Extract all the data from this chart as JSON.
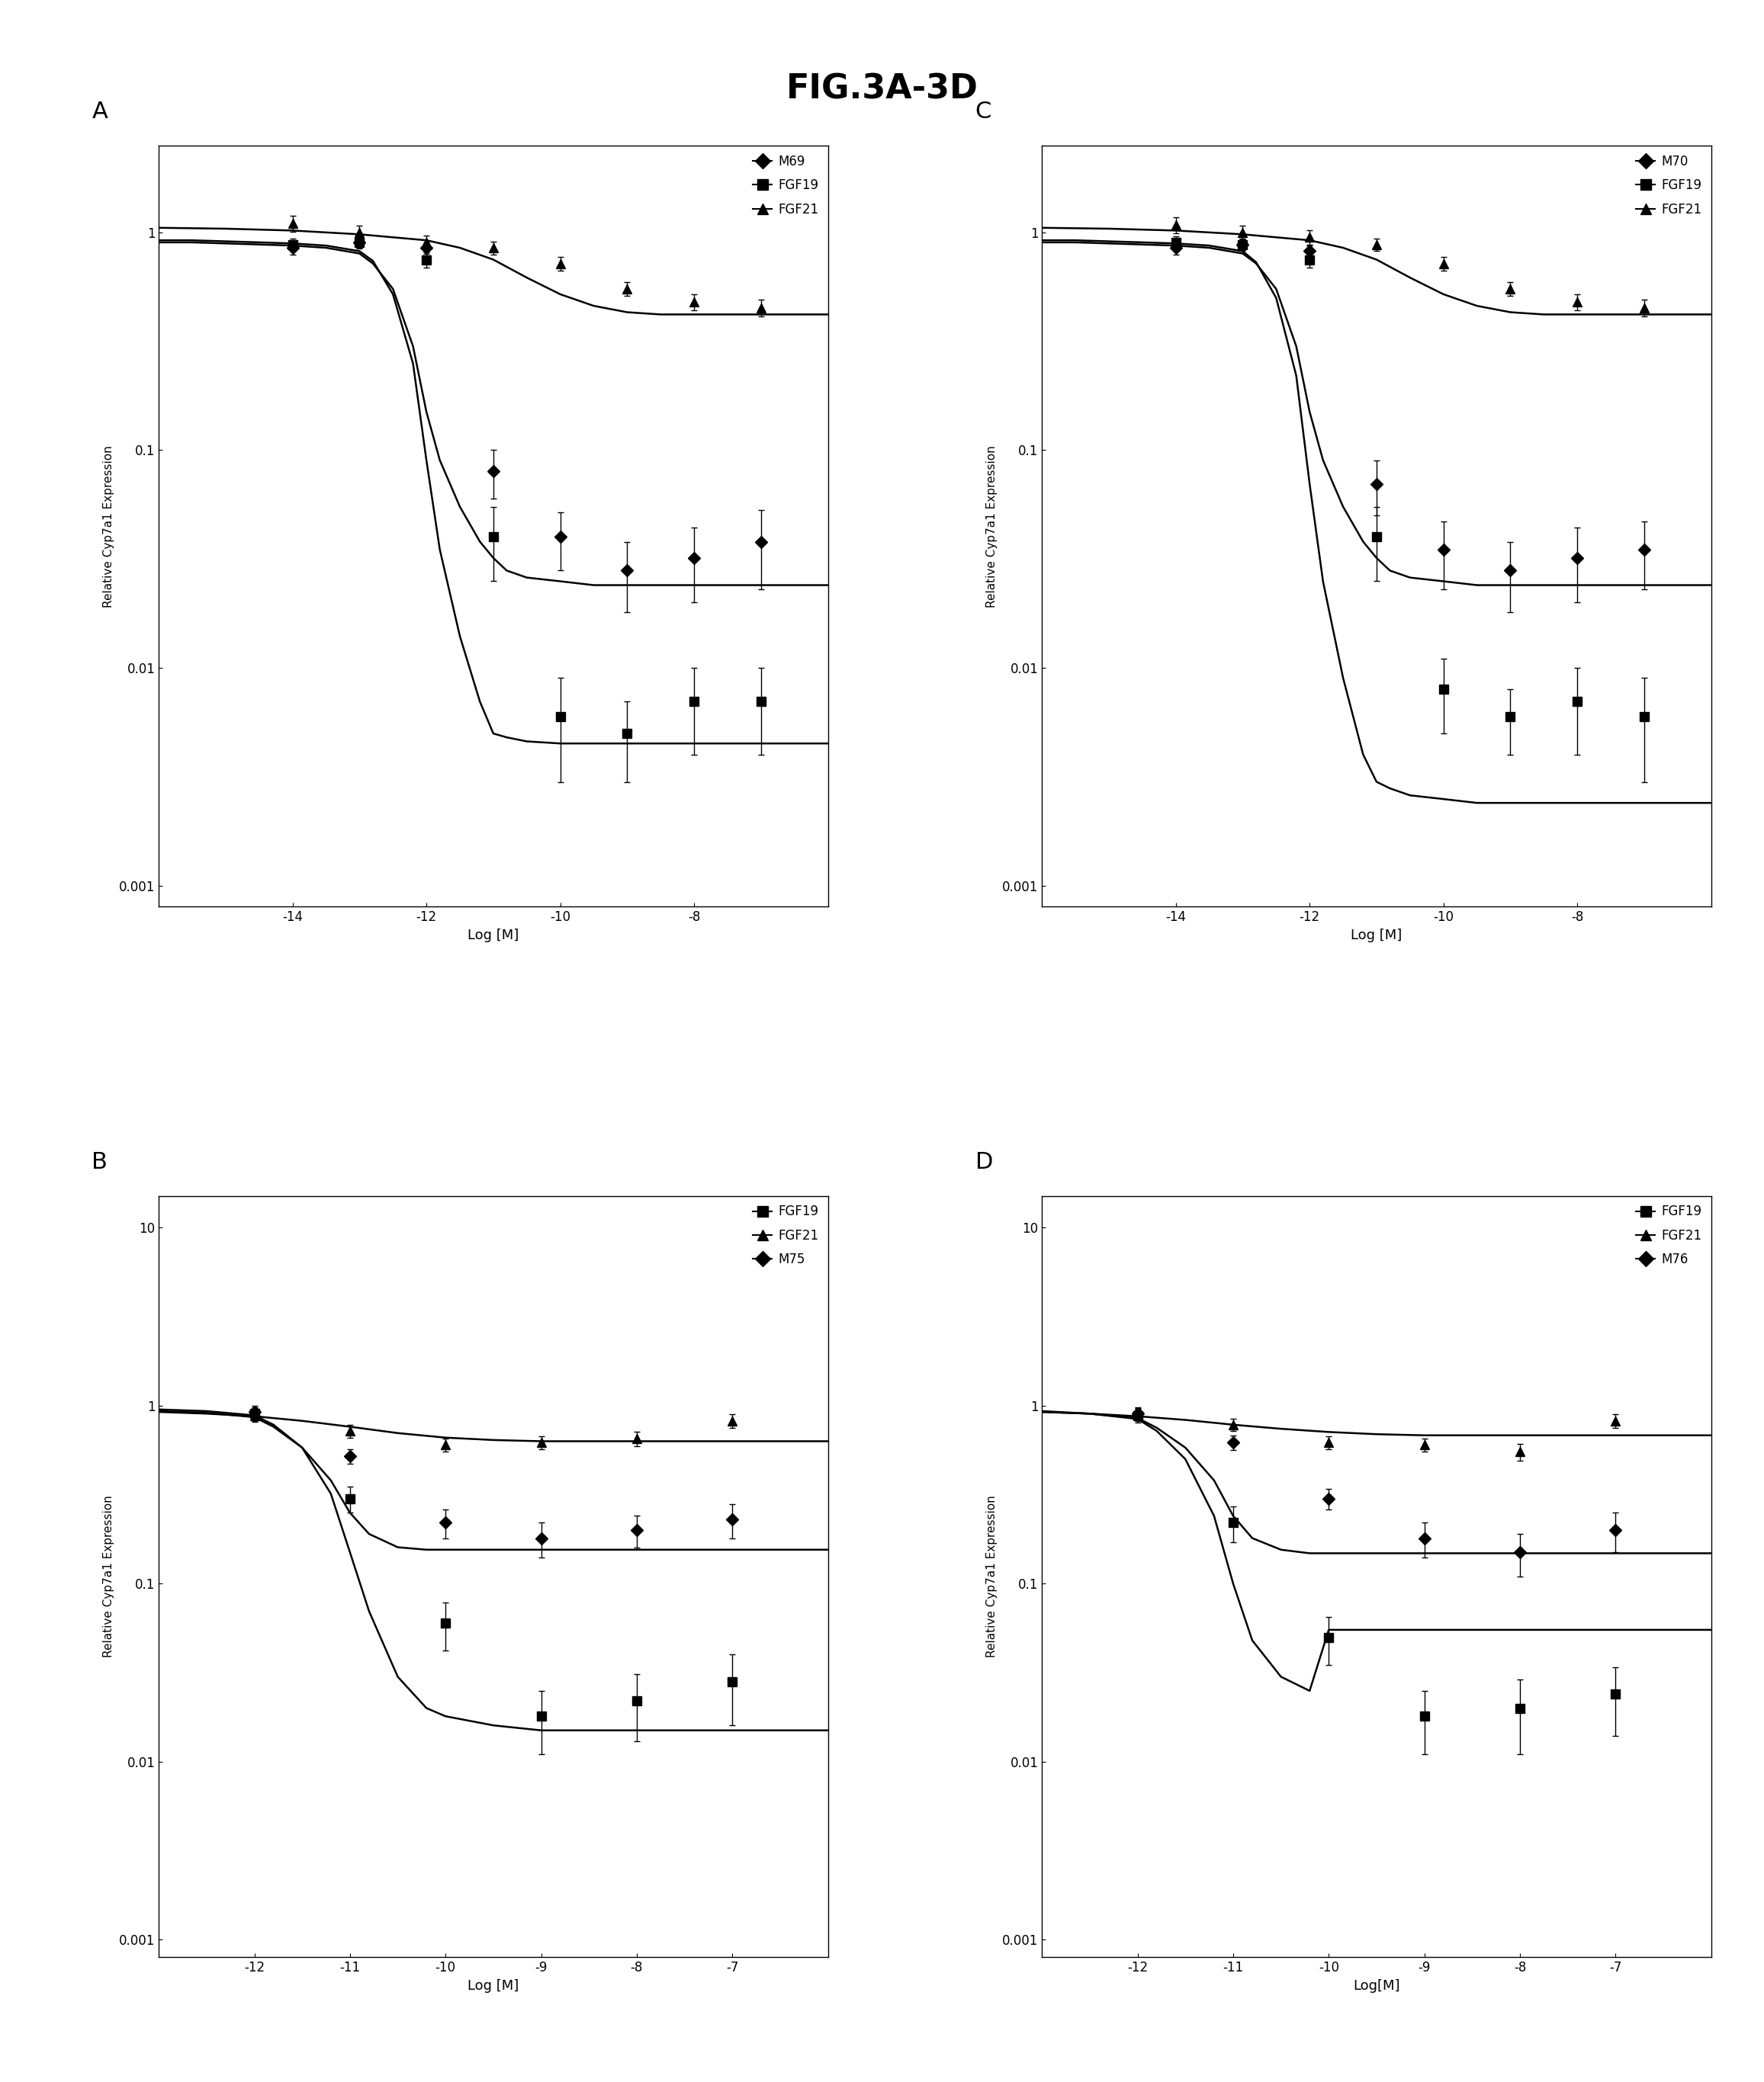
{
  "title": "FIG.3A-3D",
  "title_fontsize": 32,
  "title_fontweight": "bold",
  "background_color": "#ffffff",
  "panels": {
    "A": {
      "label": "A",
      "xlabel": "Log [M]",
      "ylabel": "Relative Cyp7a1 Expression",
      "xlim": [
        -16,
        -6
      ],
      "ylim": [
        0.0008,
        2.5
      ],
      "xticks": [
        -14,
        -12,
        -10,
        -8
      ],
      "yticks": [
        0.001,
        0.01,
        0.1,
        1
      ],
      "yticklabels": [
        "0.001",
        "0.01",
        "0.1",
        "1"
      ],
      "legend": [
        "M69",
        "FGF19",
        "FGF21"
      ],
      "series": {
        "M69": {
          "marker": "D",
          "color": "#000000",
          "x": [
            -14,
            -13,
            -12,
            -11,
            -10,
            -9,
            -8,
            -7
          ],
          "y": [
            0.85,
            0.9,
            0.85,
            0.08,
            0.04,
            0.028,
            0.032,
            0.038
          ],
          "yerr": [
            0.06,
            0.05,
            0.05,
            0.02,
            0.012,
            0.01,
            0.012,
            0.015
          ],
          "curve_x": [
            -16,
            -15.5,
            -15,
            -14.5,
            -14,
            -13.5,
            -13,
            -12.8,
            -12.5,
            -12.2,
            -12,
            -11.8,
            -11.5,
            -11.2,
            -11,
            -10.8,
            -10.5,
            -10,
            -9.5,
            -9,
            -8.5,
            -8,
            -7.5,
            -7,
            -6.5,
            -6
          ],
          "curve_y": [
            0.9,
            0.9,
            0.89,
            0.88,
            0.87,
            0.85,
            0.8,
            0.72,
            0.55,
            0.3,
            0.15,
            0.09,
            0.055,
            0.038,
            0.032,
            0.028,
            0.026,
            0.025,
            0.024,
            0.024,
            0.024,
            0.024,
            0.024,
            0.024,
            0.024,
            0.024
          ]
        },
        "FGF19": {
          "marker": "s",
          "color": "#000000",
          "x": [
            -14,
            -13,
            -12,
            -11,
            -10,
            -9,
            -8,
            -7
          ],
          "y": [
            0.88,
            0.9,
            0.75,
            0.04,
            0.006,
            0.005,
            0.007,
            0.007
          ],
          "yerr": [
            0.06,
            0.06,
            0.06,
            0.015,
            0.003,
            0.002,
            0.003,
            0.003
          ],
          "curve_x": [
            -16,
            -15.5,
            -15,
            -14.5,
            -14,
            -13.5,
            -13,
            -12.8,
            -12.5,
            -12.2,
            -12,
            -11.8,
            -11.5,
            -11.2,
            -11,
            -10.8,
            -10.5,
            -10,
            -9.5,
            -9,
            -8.5,
            -8,
            -7.5,
            -7,
            -6.5,
            -6
          ],
          "curve_y": [
            0.92,
            0.92,
            0.91,
            0.9,
            0.89,
            0.87,
            0.82,
            0.74,
            0.52,
            0.25,
            0.09,
            0.035,
            0.014,
            0.007,
            0.005,
            0.0048,
            0.0046,
            0.0045,
            0.0045,
            0.0045,
            0.0045,
            0.0045,
            0.0045,
            0.0045,
            0.0045,
            0.0045
          ]
        },
        "FGF21": {
          "marker": "^",
          "color": "#000000",
          "x": [
            -14,
            -13,
            -12,
            -11,
            -10,
            -9,
            -8,
            -7
          ],
          "y": [
            1.1,
            1.0,
            0.9,
            0.85,
            0.72,
            0.55,
            0.48,
            0.45
          ],
          "yerr": [
            0.09,
            0.07,
            0.07,
            0.06,
            0.05,
            0.04,
            0.04,
            0.04
          ],
          "curve_x": [
            -16,
            -15,
            -14,
            -13,
            -12,
            -11.5,
            -11,
            -10.5,
            -10,
            -9.5,
            -9,
            -8.5,
            -8,
            -7,
            -6
          ],
          "curve_y": [
            1.05,
            1.04,
            1.02,
            0.98,
            0.92,
            0.85,
            0.75,
            0.62,
            0.52,
            0.46,
            0.43,
            0.42,
            0.42,
            0.42,
            0.42
          ]
        }
      }
    },
    "C": {
      "label": "C",
      "xlabel": "Log [M]",
      "ylabel": "Relative Cyp7a1 Expression",
      "xlim": [
        -16,
        -6
      ],
      "ylim": [
        0.0008,
        2.5
      ],
      "xticks": [
        -14,
        -12,
        -10,
        -8
      ],
      "yticks": [
        0.001,
        0.01,
        0.1,
        1
      ],
      "yticklabels": [
        "0.001",
        "0.01",
        "0.1",
        "1"
      ],
      "legend": [
        "M70",
        "FGF19",
        "FGF21"
      ],
      "series": {
        "M70": {
          "marker": "D",
          "color": "#000000",
          "x": [
            -14,
            -13,
            -12,
            -11,
            -10,
            -9,
            -8,
            -7
          ],
          "y": [
            0.85,
            0.88,
            0.82,
            0.07,
            0.035,
            0.028,
            0.032,
            0.035
          ],
          "yerr": [
            0.06,
            0.05,
            0.05,
            0.02,
            0.012,
            0.01,
            0.012,
            0.012
          ],
          "curve_x": [
            -16,
            -15.5,
            -15,
            -14.5,
            -14,
            -13.5,
            -13,
            -12.8,
            -12.5,
            -12.2,
            -12,
            -11.8,
            -11.5,
            -11.2,
            -11,
            -10.8,
            -10.5,
            -10,
            -9.5,
            -9,
            -8.5,
            -8,
            -7.5,
            -7,
            -6.5,
            -6
          ],
          "curve_y": [
            0.9,
            0.9,
            0.89,
            0.88,
            0.87,
            0.85,
            0.8,
            0.72,
            0.55,
            0.3,
            0.15,
            0.09,
            0.055,
            0.038,
            0.032,
            0.028,
            0.026,
            0.025,
            0.024,
            0.024,
            0.024,
            0.024,
            0.024,
            0.024,
            0.024,
            0.024
          ]
        },
        "FGF19": {
          "marker": "s",
          "color": "#000000",
          "x": [
            -14,
            -13,
            -12,
            -11,
            -10,
            -9,
            -8,
            -7
          ],
          "y": [
            0.9,
            0.88,
            0.75,
            0.04,
            0.008,
            0.006,
            0.007,
            0.006
          ],
          "yerr": [
            0.06,
            0.06,
            0.06,
            0.015,
            0.003,
            0.002,
            0.003,
            0.003
          ],
          "curve_x": [
            -16,
            -15.5,
            -15,
            -14.5,
            -14,
            -13.5,
            -13,
            -12.8,
            -12.5,
            -12.2,
            -12,
            -11.8,
            -11.5,
            -11.2,
            -11,
            -10.8,
            -10.5,
            -10,
            -9.5,
            -9,
            -8.5,
            -8,
            -7.5,
            -7,
            -6.5,
            -6
          ],
          "curve_y": [
            0.92,
            0.92,
            0.91,
            0.9,
            0.89,
            0.87,
            0.82,
            0.73,
            0.5,
            0.22,
            0.07,
            0.025,
            0.009,
            0.004,
            0.003,
            0.0028,
            0.0026,
            0.0025,
            0.0024,
            0.0024,
            0.0024,
            0.0024,
            0.0024,
            0.0024,
            0.0024,
            0.0024
          ]
        },
        "FGF21": {
          "marker": "^",
          "color": "#000000",
          "x": [
            -14,
            -13,
            -12,
            -11,
            -10,
            -9,
            -8,
            -7
          ],
          "y": [
            1.08,
            1.0,
            0.95,
            0.88,
            0.72,
            0.55,
            0.48,
            0.45
          ],
          "yerr": [
            0.09,
            0.07,
            0.07,
            0.06,
            0.05,
            0.04,
            0.04,
            0.04
          ],
          "curve_x": [
            -16,
            -15,
            -14,
            -13,
            -12,
            -11.5,
            -11,
            -10.5,
            -10,
            -9.5,
            -9,
            -8.5,
            -8,
            -7,
            -6
          ],
          "curve_y": [
            1.05,
            1.04,
            1.02,
            0.98,
            0.92,
            0.85,
            0.75,
            0.62,
            0.52,
            0.46,
            0.43,
            0.42,
            0.42,
            0.42,
            0.42
          ]
        }
      }
    },
    "B": {
      "label": "B",
      "xlabel": "Log [M]",
      "ylabel": "Relative Cyp7a1 Expression",
      "xlim": [
        -13,
        -6
      ],
      "ylim": [
        0.0008,
        15
      ],
      "xticks": [
        -12,
        -11,
        -10,
        -9,
        -8,
        -7
      ],
      "yticks": [
        0.001,
        0.01,
        0.1,
        1,
        10
      ],
      "yticklabels": [
        "0.001",
        "0.01",
        "0.1",
        "1",
        "10"
      ],
      "legend": [
        "FGF19",
        "FGF21",
        "M75"
      ],
      "series": {
        "FGF19": {
          "marker": "s",
          "color": "#000000",
          "x": [
            -12,
            -11,
            -10,
            -9,
            -8,
            -7
          ],
          "y": [
            0.9,
            0.3,
            0.06,
            0.018,
            0.022,
            0.028
          ],
          "yerr": [
            0.08,
            0.05,
            0.018,
            0.007,
            0.009,
            0.012
          ],
          "curve_x": [
            -13,
            -12.5,
            -12,
            -11.8,
            -11.5,
            -11.2,
            -11,
            -10.8,
            -10.5,
            -10.2,
            -10,
            -9.5,
            -9,
            -8.5,
            -8,
            -7.5,
            -7,
            -6.5,
            -6
          ],
          "curve_y": [
            0.95,
            0.93,
            0.88,
            0.78,
            0.58,
            0.32,
            0.15,
            0.07,
            0.03,
            0.02,
            0.018,
            0.016,
            0.015,
            0.015,
            0.015,
            0.015,
            0.015,
            0.015,
            0.015
          ]
        },
        "FGF21": {
          "marker": "^",
          "color": "#000000",
          "x": [
            -12,
            -11,
            -10,
            -9,
            -8,
            -7
          ],
          "y": [
            0.88,
            0.72,
            0.6,
            0.62,
            0.65,
            0.82
          ],
          "yerr": [
            0.07,
            0.06,
            0.05,
            0.05,
            0.06,
            0.07
          ],
          "curve_x": [
            -13,
            -12.5,
            -12,
            -11.5,
            -11,
            -10.5,
            -10,
            -9.5,
            -9,
            -8.5,
            -8,
            -7.5,
            -7,
            -6.5,
            -6
          ],
          "curve_y": [
            0.92,
            0.9,
            0.87,
            0.82,
            0.76,
            0.7,
            0.66,
            0.64,
            0.63,
            0.63,
            0.63,
            0.63,
            0.63,
            0.63,
            0.63
          ]
        },
        "M75": {
          "marker": "D",
          "color": "#000000",
          "x": [
            -12,
            -11,
            -10,
            -9,
            -8,
            -7
          ],
          "y": [
            0.92,
            0.52,
            0.22,
            0.18,
            0.2,
            0.23
          ],
          "yerr": [
            0.08,
            0.05,
            0.04,
            0.04,
            0.04,
            0.05
          ],
          "curve_x": [
            -13,
            -12.5,
            -12,
            -11.8,
            -11.5,
            -11.2,
            -11,
            -10.8,
            -10.5,
            -10.2,
            -10,
            -9.5,
            -9,
            -8.5,
            -8,
            -7.5,
            -7,
            -6.5,
            -6
          ],
          "curve_y": [
            0.93,
            0.91,
            0.86,
            0.76,
            0.58,
            0.38,
            0.25,
            0.19,
            0.16,
            0.155,
            0.155,
            0.155,
            0.155,
            0.155,
            0.155,
            0.155,
            0.155,
            0.155,
            0.155
          ]
        }
      }
    },
    "D": {
      "label": "D",
      "xlabel": "Log[M]",
      "ylabel": "Relative Cyp7a1 Expression",
      "xlim": [
        -13,
        -6
      ],
      "ylim": [
        0.0008,
        15
      ],
      "xticks": [
        -12,
        -11,
        -10,
        -9,
        -8,
        -7
      ],
      "yticks": [
        0.001,
        0.01,
        0.1,
        1,
        10
      ],
      "yticklabels": [
        "0.001",
        "0.01",
        "0.1",
        "1",
        "10"
      ],
      "legend": [
        "FGF19",
        "FGF21",
        "M76"
      ],
      "series": {
        "FGF19": {
          "marker": "s",
          "color": "#000000",
          "x": [
            -12,
            -11,
            -10,
            -9,
            -8,
            -7
          ],
          "y": [
            0.88,
            0.22,
            0.05,
            0.018,
            0.02,
            0.024
          ],
          "yerr": [
            0.08,
            0.05,
            0.015,
            0.007,
            0.009,
            0.01
          ],
          "curve_x": [
            -13,
            -12.5,
            -12,
            -11.8,
            -11.5,
            -11.2,
            -11,
            -10.8,
            -10.5,
            -10.2,
            -10,
            -9.5,
            -9,
            -8.5,
            -8,
            -7.5,
            -7,
            -6.5,
            -6
          ],
          "curve_y": [
            0.93,
            0.9,
            0.84,
            0.72,
            0.5,
            0.24,
            0.1,
            0.048,
            0.03,
            0.025,
            0.055,
            0.055,
            0.055,
            0.055,
            0.055,
            0.055,
            0.055,
            0.055,
            0.055
          ]
        },
        "FGF21": {
          "marker": "^",
          "color": "#000000",
          "x": [
            -12,
            -11,
            -10,
            -9,
            -8,
            -7
          ],
          "y": [
            0.9,
            0.78,
            0.62,
            0.6,
            0.55,
            0.82
          ],
          "yerr": [
            0.07,
            0.06,
            0.05,
            0.05,
            0.06,
            0.07
          ],
          "curve_x": [
            -13,
            -12.5,
            -12,
            -11.5,
            -11,
            -10.5,
            -10,
            -9.5,
            -9,
            -8.5,
            -8,
            -7.5,
            -7,
            -6.5,
            -6
          ],
          "curve_y": [
            0.92,
            0.9,
            0.87,
            0.83,
            0.78,
            0.74,
            0.71,
            0.69,
            0.68,
            0.68,
            0.68,
            0.68,
            0.68,
            0.68,
            0.68
          ]
        },
        "M76": {
          "marker": "D",
          "color": "#000000",
          "x": [
            -12,
            -11,
            -10,
            -9,
            -8,
            -7
          ],
          "y": [
            0.9,
            0.62,
            0.3,
            0.18,
            0.15,
            0.2
          ],
          "yerr": [
            0.08,
            0.06,
            0.04,
            0.04,
            0.04,
            0.05
          ],
          "curve_x": [
            -13,
            -12.5,
            -12,
            -11.8,
            -11.5,
            -11.2,
            -11,
            -10.8,
            -10.5,
            -10.2,
            -10,
            -9.5,
            -9,
            -8.5,
            -8,
            -7.5,
            -7,
            -6.5,
            -6
          ],
          "curve_y": [
            0.92,
            0.9,
            0.85,
            0.75,
            0.58,
            0.38,
            0.24,
            0.18,
            0.155,
            0.148,
            0.148,
            0.148,
            0.148,
            0.148,
            0.148,
            0.148,
            0.148,
            0.148,
            0.148
          ]
        }
      }
    }
  }
}
